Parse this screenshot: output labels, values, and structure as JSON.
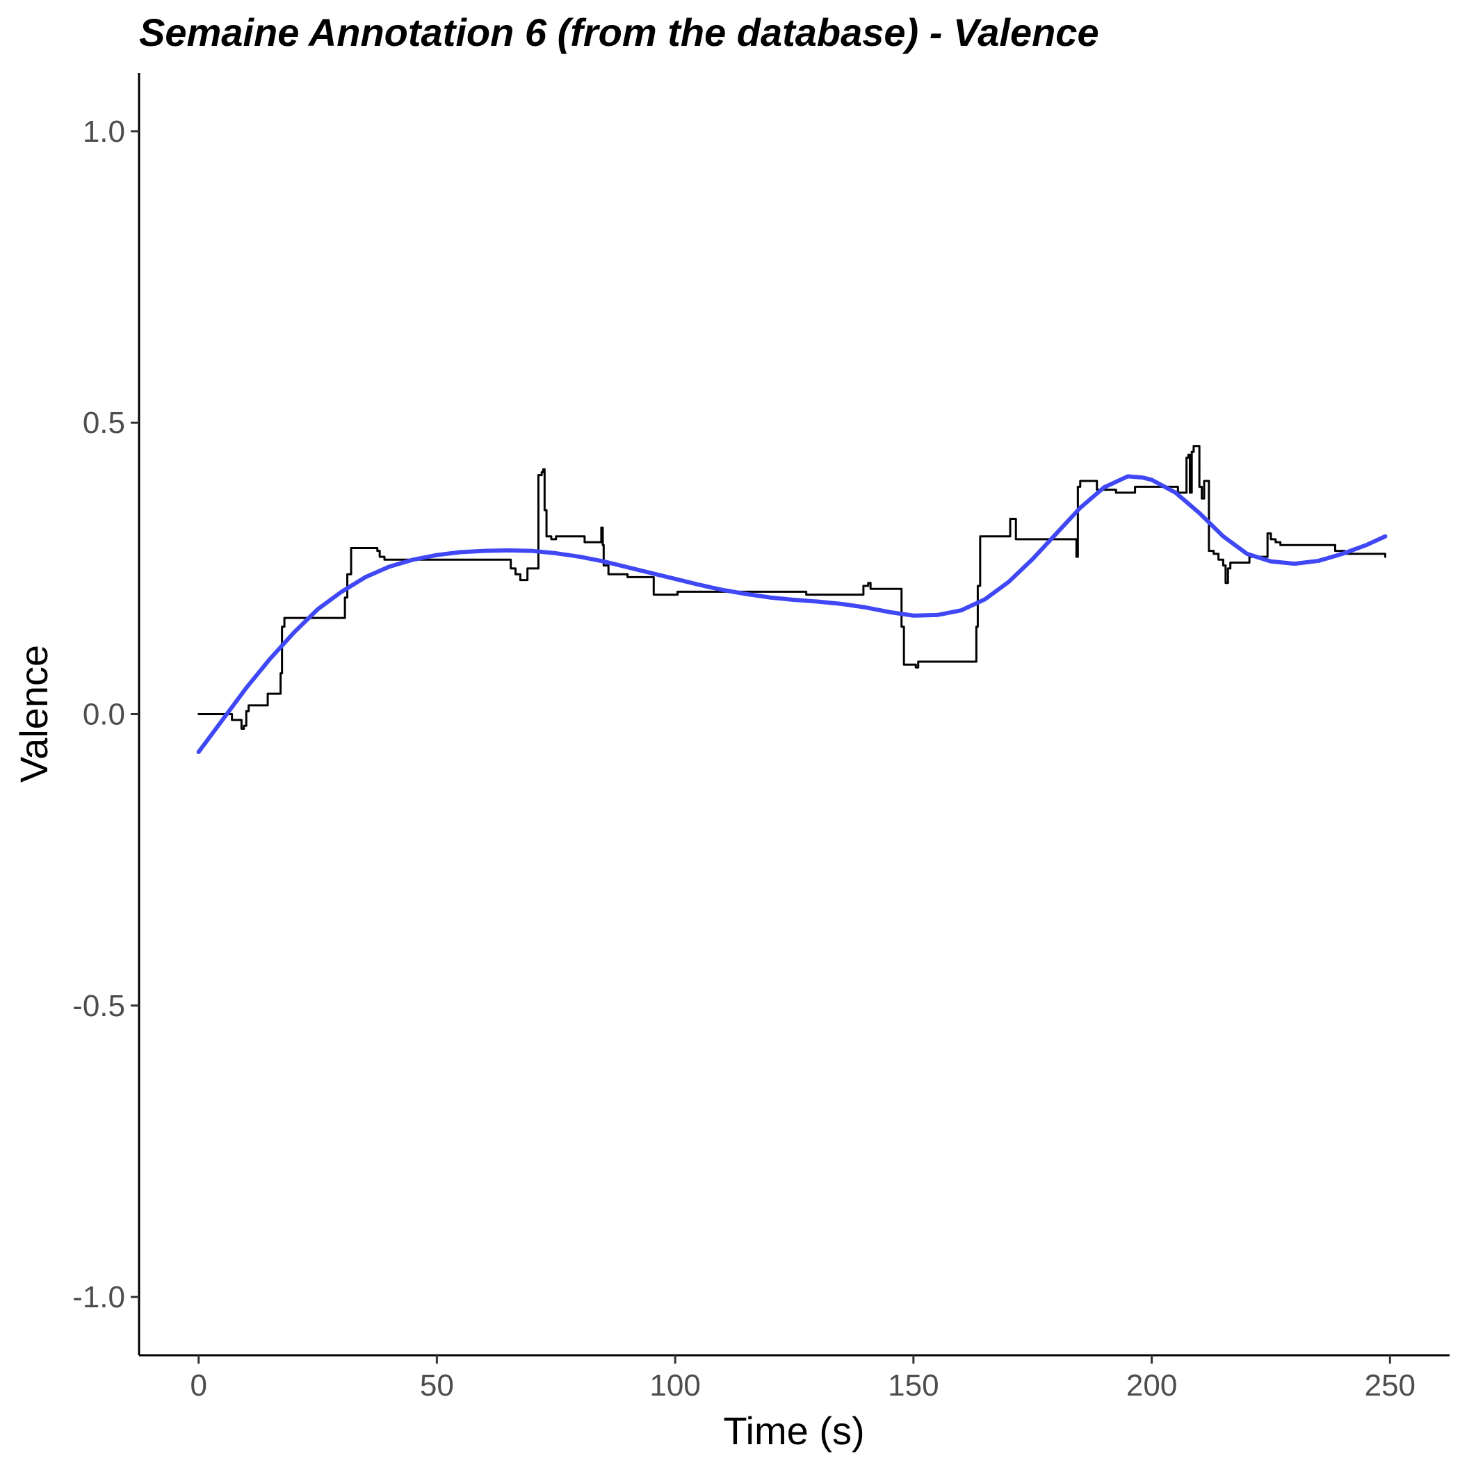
{
  "chart_data": {
    "type": "line",
    "title": "Semaine Annotation 6 (from the database) - Valence",
    "xlabel": "Time (s)",
    "ylabel": "Valence",
    "xlim": [
      -12.5,
      262.5
    ],
    "ylim": [
      -1.1,
      1.1
    ],
    "x_ticks": [
      0,
      50,
      100,
      150,
      200,
      250
    ],
    "x_tick_labels": [
      "0",
      "50",
      "100",
      "150",
      "200",
      "250"
    ],
    "y_ticks": [
      -1.0,
      -0.5,
      0.0,
      0.5,
      1.0
    ],
    "y_tick_labels": [
      "-1.0",
      "-0.5",
      "0.0",
      "0.5",
      "1.0"
    ],
    "grid": false,
    "legend": "none",
    "series": [
      {
        "color": "#000000",
        "style": "step",
        "points": [
          [
            0,
            0.0
          ],
          [
            6.5,
            0.0
          ],
          [
            7,
            -0.01
          ],
          [
            8.5,
            -0.01
          ],
          [
            9,
            -0.025
          ],
          [
            9.5,
            -0.02
          ],
          [
            10,
            0.005
          ],
          [
            10.5,
            0.015
          ],
          [
            14,
            0.015
          ],
          [
            14.5,
            0.035
          ],
          [
            17,
            0.035
          ],
          [
            17.2,
            0.07
          ],
          [
            17.5,
            0.15
          ],
          [
            18,
            0.165
          ],
          [
            30.5,
            0.165
          ],
          [
            30.7,
            0.2
          ],
          [
            31.2,
            0.24
          ],
          [
            32,
            0.285
          ],
          [
            37,
            0.285
          ],
          [
            37.5,
            0.28
          ],
          [
            38,
            0.27
          ],
          [
            39,
            0.265
          ],
          [
            65,
            0.265
          ],
          [
            65.5,
            0.25
          ],
          [
            66.5,
            0.24
          ],
          [
            67.5,
            0.23
          ],
          [
            69,
            0.25
          ],
          [
            71,
            0.25
          ],
          [
            71.3,
            0.41
          ],
          [
            72,
            0.415
          ],
          [
            72.3,
            0.42
          ],
          [
            72.6,
            0.35
          ],
          [
            73,
            0.305
          ],
          [
            74,
            0.3
          ],
          [
            75,
            0.305
          ],
          [
            80,
            0.305
          ],
          [
            81,
            0.295
          ],
          [
            84,
            0.295
          ],
          [
            84.5,
            0.32
          ],
          [
            84.8,
            0.29
          ],
          [
            85,
            0.255
          ],
          [
            86,
            0.24
          ],
          [
            90,
            0.235
          ],
          [
            95,
            0.235
          ],
          [
            95.5,
            0.205
          ],
          [
            100,
            0.205
          ],
          [
            100.5,
            0.21
          ],
          [
            127,
            0.21
          ],
          [
            127.5,
            0.205
          ],
          [
            139,
            0.205
          ],
          [
            139.5,
            0.22
          ],
          [
            140.5,
            0.225
          ],
          [
            141,
            0.215
          ],
          [
            147,
            0.215
          ],
          [
            147.5,
            0.15
          ],
          [
            148,
            0.085
          ],
          [
            150,
            0.085
          ],
          [
            150.5,
            0.08
          ],
          [
            151,
            0.09
          ],
          [
            163,
            0.09
          ],
          [
            163.2,
            0.15
          ],
          [
            163.5,
            0.22
          ],
          [
            164,
            0.305
          ],
          [
            170,
            0.305
          ],
          [
            170.3,
            0.335
          ],
          [
            171,
            0.335
          ],
          [
            171.5,
            0.3
          ],
          [
            184,
            0.3
          ],
          [
            184.2,
            0.27
          ],
          [
            184.5,
            0.39
          ],
          [
            185,
            0.4
          ],
          [
            188,
            0.4
          ],
          [
            188.5,
            0.385
          ],
          [
            192,
            0.385
          ],
          [
            192.5,
            0.38
          ],
          [
            196,
            0.38
          ],
          [
            196.5,
            0.39
          ],
          [
            205,
            0.39
          ],
          [
            205.5,
            0.38
          ],
          [
            207,
            0.38
          ],
          [
            207.3,
            0.44
          ],
          [
            207.7,
            0.445
          ],
          [
            208,
            0.38
          ],
          [
            208.4,
            0.45
          ],
          [
            208.8,
            0.46
          ],
          [
            209.5,
            0.46
          ],
          [
            210,
            0.39
          ],
          [
            210.5,
            0.37
          ],
          [
            211,
            0.4
          ],
          [
            211.6,
            0.4
          ],
          [
            212,
            0.28
          ],
          [
            213,
            0.275
          ],
          [
            214,
            0.265
          ],
          [
            215,
            0.255
          ],
          [
            215.5,
            0.225
          ],
          [
            216,
            0.25
          ],
          [
            216.5,
            0.26
          ],
          [
            220,
            0.26
          ],
          [
            220.5,
            0.27
          ],
          [
            224,
            0.27
          ],
          [
            224.3,
            0.31
          ],
          [
            225,
            0.3
          ],
          [
            226,
            0.295
          ],
          [
            227,
            0.29
          ],
          [
            238,
            0.29
          ],
          [
            238.5,
            0.28
          ],
          [
            240,
            0.28
          ],
          [
            240.5,
            0.275
          ],
          [
            248.5,
            0.275
          ],
          [
            249,
            0.27
          ]
        ]
      },
      {
        "color": "#3f48f4",
        "style": "smooth",
        "points": [
          [
            0,
            -0.065
          ],
          [
            5,
            -0.01
          ],
          [
            10,
            0.045
          ],
          [
            15,
            0.095
          ],
          [
            20,
            0.14
          ],
          [
            25,
            0.18
          ],
          [
            30,
            0.21
          ],
          [
            35,
            0.235
          ],
          [
            40,
            0.253
          ],
          [
            45,
            0.265
          ],
          [
            50,
            0.273
          ],
          [
            55,
            0.278
          ],
          [
            60,
            0.28
          ],
          [
            65,
            0.281
          ],
          [
            70,
            0.28
          ],
          [
            75,
            0.276
          ],
          [
            80,
            0.27
          ],
          [
            85,
            0.262
          ],
          [
            90,
            0.252
          ],
          [
            95,
            0.242
          ],
          [
            100,
            0.232
          ],
          [
            105,
            0.222
          ],
          [
            110,
            0.213
          ],
          [
            115,
            0.206
          ],
          [
            120,
            0.2
          ],
          [
            125,
            0.196
          ],
          [
            130,
            0.193
          ],
          [
            135,
            0.189
          ],
          [
            140,
            0.183
          ],
          [
            145,
            0.175
          ],
          [
            150,
            0.169
          ],
          [
            155,
            0.17
          ],
          [
            160,
            0.178
          ],
          [
            165,
            0.197
          ],
          [
            170,
            0.227
          ],
          [
            175,
            0.266
          ],
          [
            180,
            0.31
          ],
          [
            185,
            0.354
          ],
          [
            190,
            0.389
          ],
          [
            195,
            0.408
          ],
          [
            198,
            0.406
          ],
          [
            200,
            0.402
          ],
          [
            205,
            0.38
          ],
          [
            210,
            0.345
          ],
          [
            215,
            0.305
          ],
          [
            220,
            0.275
          ],
          [
            225,
            0.262
          ],
          [
            230,
            0.258
          ],
          [
            235,
            0.263
          ],
          [
            240,
            0.275
          ],
          [
            245,
            0.29
          ],
          [
            249,
            0.305
          ]
        ]
      }
    ]
  }
}
